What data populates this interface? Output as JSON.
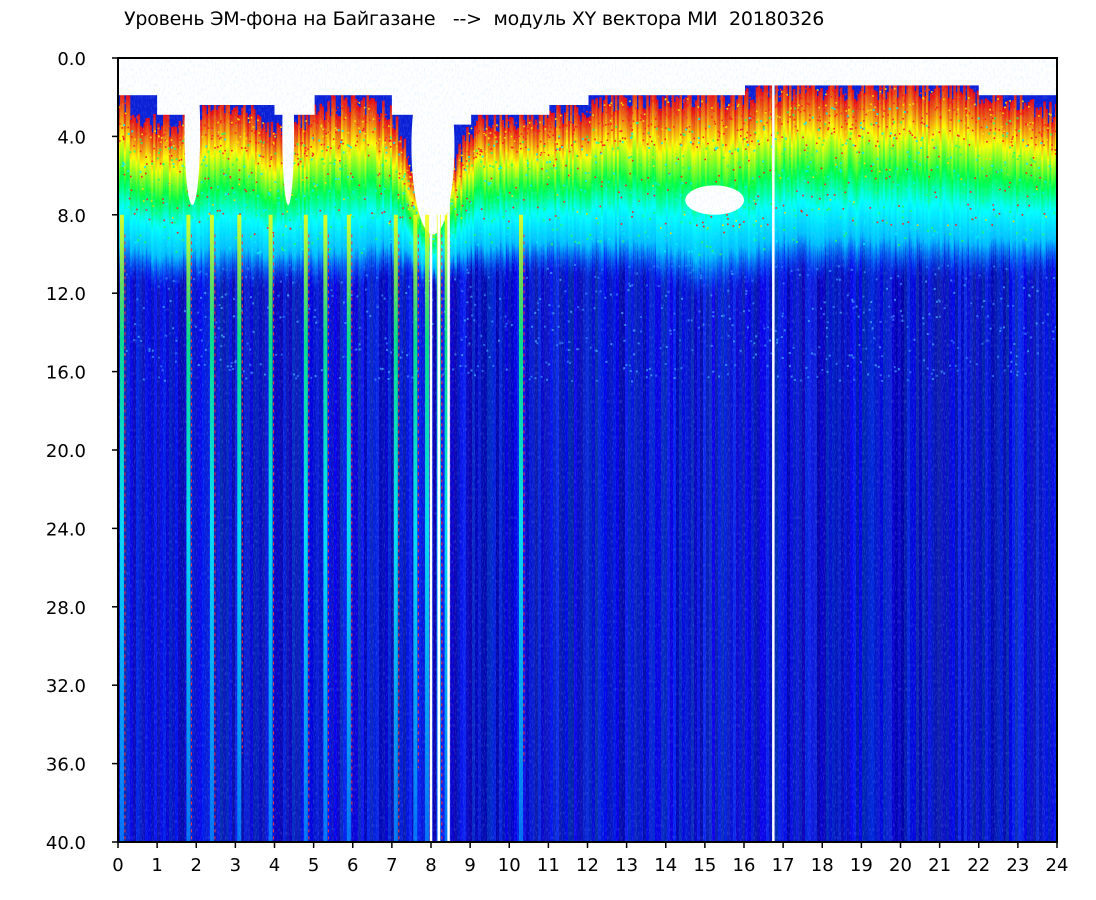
{
  "chart_data": {
    "type": "heatmap",
    "title": "Уровень ЭМ-фона на Байгазане   -->  модуль XY вектора МИ  20180326",
    "xlabel": "",
    "ylabel": "",
    "xlim": [
      0,
      24
    ],
    "ylim": [
      40.0,
      0.0
    ],
    "x_tick_labels": [
      "0",
      "1",
      "2",
      "3",
      "4",
      "5",
      "6",
      "7",
      "8",
      "9",
      "10",
      "11",
      "12",
      "13",
      "14",
      "15",
      "16",
      "17",
      "18",
      "19",
      "20",
      "21",
      "22",
      "23",
      "24"
    ],
    "y_tick_labels": [
      "0.0",
      "4.0",
      "8.0",
      "12.0",
      "16.0",
      "20.0",
      "24.0",
      "28.0",
      "32.0",
      "36.0",
      "40.0"
    ],
    "colorscale": [
      "#ffffff",
      "#ff0000",
      "#ffff00",
      "#00ff00",
      "#00ffff",
      "#0000ff",
      "#0010c0"
    ],
    "background_level_y": 14.5,
    "upper_band": {
      "hot_top_y": [
        2.0,
        3.5,
        3.0,
        2.5,
        3.5,
        3.0,
        2.0,
        3.0,
        8.0,
        3.5,
        3.0,
        3.0,
        2.5,
        2.0,
        2.0,
        2.0,
        2.0,
        1.5,
        1.5,
        1.5,
        1.5,
        1.5,
        2.0,
        2.0,
        3.0
      ],
      "hot_bottom_y": [
        8.5,
        9.0,
        9.0,
        9.0,
        9.0,
        9.0,
        9.0,
        8.5,
        9.0,
        8.5,
        8.5,
        8.5,
        8.5,
        8.5,
        9.0,
        9.5,
        9.0,
        8.5,
        8.5,
        8.5,
        8.5,
        8.5,
        8.5,
        8.5,
        8.5
      ]
    },
    "white_gaps": [
      {
        "x_start": 1.7,
        "x_end": 2.1,
        "y_top": 0.0,
        "y_bottom": 7.5
      },
      {
        "x_start": 4.2,
        "x_end": 4.5,
        "y_top": 0.0,
        "y_bottom": 7.5
      },
      {
        "x_start": 7.5,
        "x_end": 8.6,
        "y_top": 0.0,
        "y_bottom": 9.0
      },
      {
        "x_start": 14.5,
        "x_end": 16.0,
        "y_top": 6.5,
        "y_bottom": 8.0
      }
    ],
    "disturbance_streaks_x": [
      0.1,
      1.8,
      2.4,
      3.1,
      3.9,
      4.8,
      5.3,
      5.9,
      7.1,
      7.6,
      7.9,
      8.2,
      8.4,
      10.3
    ],
    "white_lines_x": [
      8.0,
      8.2,
      8.45,
      16.75
    ],
    "grid": false,
    "legend": "none"
  }
}
